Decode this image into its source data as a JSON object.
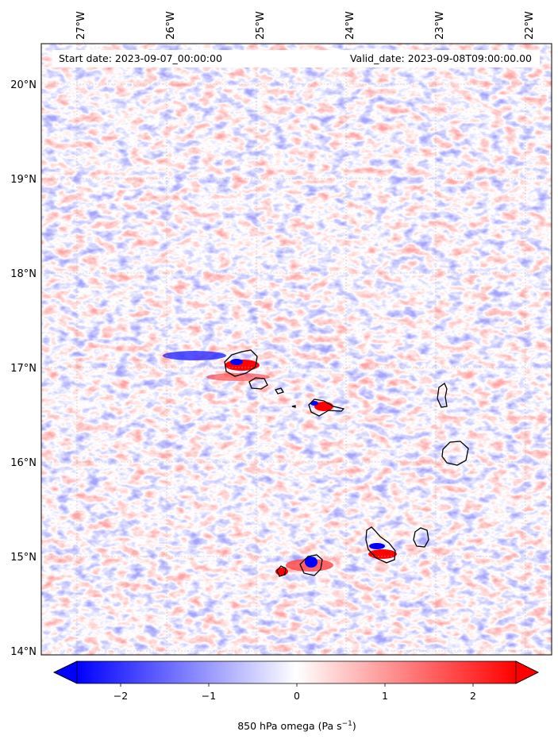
{
  "header": {
    "start_date": "Start date: 2023-09-07_00:00:00",
    "valid_date": "Valid_date: 2023-09-08T09:00:00.00"
  },
  "map": {
    "lon_labels": [
      "27°W",
      "26°W",
      "25°W",
      "24°W",
      "23°W",
      "22°W"
    ],
    "lat_labels": [
      "20°N",
      "19°N",
      "18°N",
      "17°N",
      "16°N",
      "15°N",
      "14°N"
    ],
    "gridlines": true
  },
  "colorbar": {
    "ticks": [
      "−2",
      "−1",
      "0",
      "1",
      "2"
    ],
    "label": "850 hPa omega (Pa s",
    "label_sup": "−1",
    "label_close": ")",
    "range": [
      -2.6,
      2.6
    ],
    "colormap": "bwr",
    "extend": "both"
  }
}
